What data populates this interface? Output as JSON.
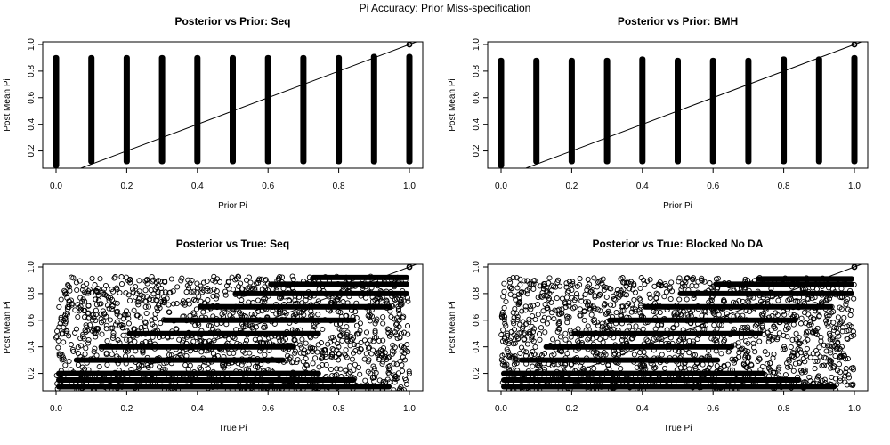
{
  "figure": {
    "title": "Pi Accuracy: Prior Miss-specification"
  },
  "chart_data": [
    {
      "type": "scatter",
      "pattern": "vertical-columns",
      "title": "Posterior vs Prior: Seq",
      "xlabel": "Prior Pi",
      "ylabel": "Post Mean Pi",
      "xlim": [
        0,
        1
      ],
      "ylim": [
        0.07,
        1.02
      ],
      "x_ticks": [
        "0.0",
        "0.2",
        "0.4",
        "0.6",
        "0.8",
        "1.0"
      ],
      "y_ticks": [
        "0.2",
        "0.4",
        "0.6",
        "0.8",
        "1.0"
      ],
      "x_values": [
        0.0,
        0.1,
        0.2,
        0.3,
        0.4,
        0.5,
        0.6,
        0.7,
        0.8,
        0.9,
        1.0
      ],
      "y_range_per_column": [
        [
          0.07,
          0.92
        ],
        [
          0.1,
          0.92
        ],
        [
          0.1,
          0.92
        ],
        [
          0.1,
          0.92
        ],
        [
          0.1,
          0.92
        ],
        [
          0.1,
          0.92
        ],
        [
          0.1,
          0.92
        ],
        [
          0.1,
          0.92
        ],
        [
          0.1,
          0.92
        ],
        [
          0.1,
          0.93
        ],
        [
          0.1,
          0.93
        ]
      ],
      "extra_points": [
        [
          1.0,
          1.0
        ]
      ],
      "reference_line": "y = x"
    },
    {
      "type": "scatter",
      "pattern": "vertical-columns",
      "title": "Posterior vs Prior: BMH",
      "xlabel": "Prior Pi",
      "ylabel": "Post Mean Pi",
      "xlim": [
        0,
        1
      ],
      "ylim": [
        0.07,
        1.02
      ],
      "x_ticks": [
        "0.0",
        "0.2",
        "0.4",
        "0.6",
        "0.8",
        "1.0"
      ],
      "y_ticks": [
        "0.2",
        "0.4",
        "0.6",
        "0.8",
        "1.0"
      ],
      "x_values": [
        0.0,
        0.1,
        0.2,
        0.3,
        0.4,
        0.5,
        0.6,
        0.7,
        0.8,
        0.9,
        1.0
      ],
      "y_range_per_column": [
        [
          0.07,
          0.9
        ],
        [
          0.1,
          0.9
        ],
        [
          0.1,
          0.9
        ],
        [
          0.1,
          0.9
        ],
        [
          0.1,
          0.91
        ],
        [
          0.1,
          0.9
        ],
        [
          0.1,
          0.9
        ],
        [
          0.1,
          0.9
        ],
        [
          0.1,
          0.91
        ],
        [
          0.1,
          0.91
        ],
        [
          0.1,
          0.92
        ]
      ],
      "extra_points": [
        [
          1.0,
          1.0
        ]
      ],
      "reference_line": "y = x"
    },
    {
      "type": "scatter",
      "pattern": "dense-cloud-with-horizontal-bands",
      "title": "Posterior vs True: Seq",
      "xlabel": "True Pi",
      "ylabel": "Post Mean Pi",
      "xlim": [
        0,
        1
      ],
      "ylim": [
        0.07,
        1.02
      ],
      "x_ticks": [
        "0.0",
        "0.2",
        "0.4",
        "0.6",
        "0.8",
        "1.0"
      ],
      "y_ticks": [
        "0.2",
        "0.4",
        "0.6",
        "0.8",
        "1.0"
      ],
      "x_range": [
        0.0,
        1.0
      ],
      "y_range": [
        0.07,
        0.93
      ],
      "bands": [
        {
          "y": 0.1,
          "x_from": 0.0,
          "x_to": 0.95
        },
        {
          "y": 0.15,
          "x_from": 0.0,
          "x_to": 0.85
        },
        {
          "y": 0.2,
          "x_from": 0.0,
          "x_to": 0.75
        },
        {
          "y": 0.3,
          "x_from": 0.05,
          "x_to": 0.65
        },
        {
          "y": 0.4,
          "x_from": 0.12,
          "x_to": 0.68
        },
        {
          "y": 0.5,
          "x_from": 0.2,
          "x_to": 0.75
        },
        {
          "y": 0.6,
          "x_from": 0.3,
          "x_to": 0.85
        },
        {
          "y": 0.7,
          "x_from": 0.4,
          "x_to": 0.95
        },
        {
          "y": 0.8,
          "x_from": 0.5,
          "x_to": 1.0
        },
        {
          "y": 0.87,
          "x_from": 0.6,
          "x_to": 1.0
        },
        {
          "y": 0.92,
          "x_from": 0.72,
          "x_to": 1.0
        }
      ],
      "extra_points": [
        [
          1.0,
          1.0
        ]
      ],
      "reference_line": "y = x"
    },
    {
      "type": "scatter",
      "pattern": "dense-cloud-with-horizontal-bands",
      "title": "Posterior vs True: Blocked No DA",
      "xlabel": "True Pi",
      "ylabel": "Post Mean Pi",
      "xlim": [
        0,
        1
      ],
      "ylim": [
        0.07,
        1.02
      ],
      "x_ticks": [
        "0.0",
        "0.2",
        "0.4",
        "0.6",
        "0.8",
        "1.0"
      ],
      "y_ticks": [
        "0.2",
        "0.4",
        "0.6",
        "0.8",
        "1.0"
      ],
      "x_range": [
        0.0,
        1.0
      ],
      "y_range": [
        0.07,
        0.92
      ],
      "bands": [
        {
          "y": 0.1,
          "x_from": 0.0,
          "x_to": 0.95
        },
        {
          "y": 0.15,
          "x_from": 0.0,
          "x_to": 0.85
        },
        {
          "y": 0.2,
          "x_from": 0.0,
          "x_to": 0.75
        },
        {
          "y": 0.3,
          "x_from": 0.05,
          "x_to": 0.62
        },
        {
          "y": 0.4,
          "x_from": 0.12,
          "x_to": 0.66
        },
        {
          "y": 0.5,
          "x_from": 0.2,
          "x_to": 0.74
        },
        {
          "y": 0.6,
          "x_from": 0.3,
          "x_to": 0.84
        },
        {
          "y": 0.7,
          "x_from": 0.4,
          "x_to": 0.94
        },
        {
          "y": 0.8,
          "x_from": 0.5,
          "x_to": 1.0
        },
        {
          "y": 0.87,
          "x_from": 0.6,
          "x_to": 1.0
        },
        {
          "y": 0.91,
          "x_from": 0.72,
          "x_to": 1.0
        }
      ],
      "extra_points": [
        [
          1.0,
          1.0
        ]
      ],
      "reference_line": "y = x"
    }
  ]
}
